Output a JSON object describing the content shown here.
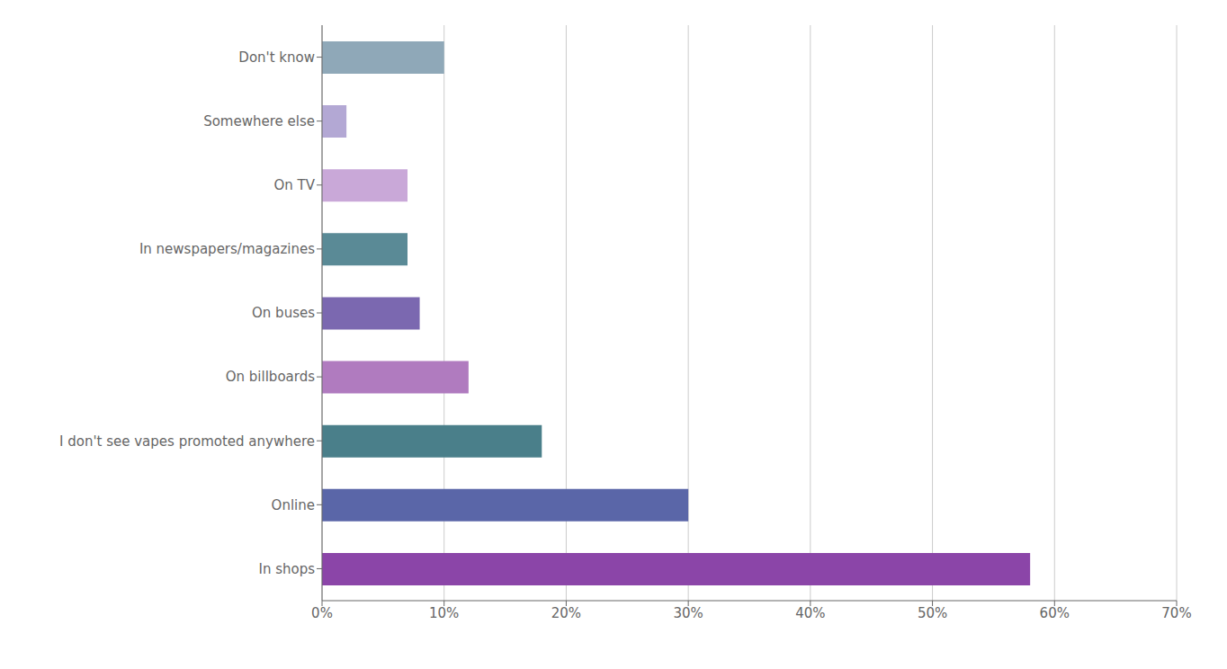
{
  "chart_data": {
    "type": "bar",
    "orientation": "horizontal",
    "categories": [
      "Don't know",
      "Somewhere else",
      "On TV",
      "In newspapers/magazines",
      "On buses",
      "On billboards",
      "I don't see vapes promoted anywhere",
      "Online",
      "In shops"
    ],
    "values": [
      10,
      2,
      7,
      7,
      8,
      12,
      18,
      30,
      58
    ],
    "colors": [
      "#8fa8b8",
      "#b3a8d4",
      "#c9a8d8",
      "#5a8a96",
      "#7b68b0",
      "#b07bbf",
      "#4a7f8a",
      "#5a66a8",
      "#8b45a8"
    ],
    "xlim": [
      0,
      70
    ],
    "xticks": [
      {
        "value": 0,
        "label": "0%"
      },
      {
        "value": 10,
        "label": "10%"
      },
      {
        "value": 20,
        "label": "20%"
      },
      {
        "value": 30,
        "label": "30%"
      },
      {
        "value": 40,
        "label": "40%"
      },
      {
        "value": 50,
        "label": "50%"
      },
      {
        "value": 60,
        "label": "60%"
      },
      {
        "value": 70,
        "label": "70%"
      }
    ],
    "grid": true
  }
}
